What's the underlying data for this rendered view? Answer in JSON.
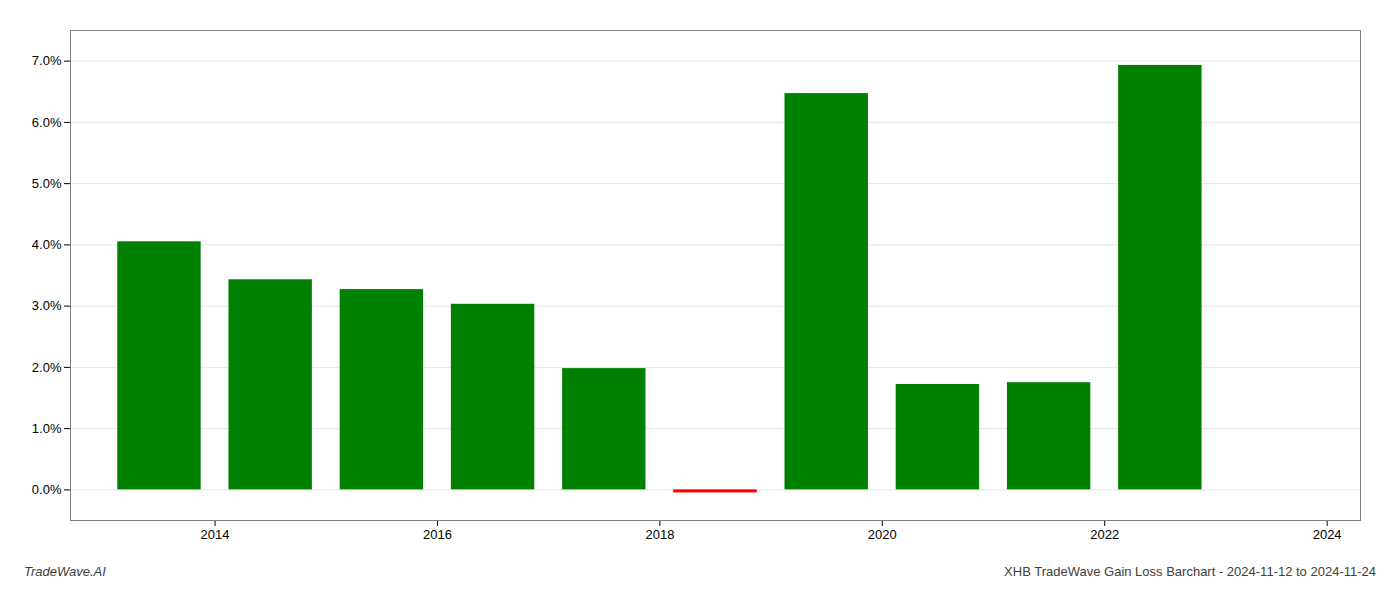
{
  "chart_data": {
    "type": "bar",
    "x": [
      2013,
      2014,
      2015,
      2016,
      2017,
      2018,
      2019,
      2020,
      2021,
      2022,
      2023
    ],
    "values": [
      0.0405,
      0.0343,
      0.0327,
      0.0303,
      0.0198,
      -0.0005,
      0.0647,
      0.0172,
      0.0175,
      0.0693,
      0.0
    ],
    "colors": [
      "#008000",
      "#008000",
      "#008000",
      "#008000",
      "#008000",
      "#ff0000",
      "#008000",
      "#008000",
      "#008000",
      "#008000",
      "#008000"
    ],
    "xlim": [
      2012.2,
      2023.8
    ],
    "xticks": [
      {
        "value": 2013.5,
        "label": "2014"
      },
      {
        "value": 2015.5,
        "label": "2016"
      },
      {
        "value": 2017.5,
        "label": "2018"
      },
      {
        "value": 2019.5,
        "label": "2020"
      },
      {
        "value": 2021.5,
        "label": "2022"
      },
      {
        "value": 2023.5,
        "label": "2024"
      }
    ],
    "ylim": [
      -0.005,
      0.075
    ],
    "yticks": [
      {
        "value": 0.0,
        "label": "0.0%"
      },
      {
        "value": 0.01,
        "label": "1.0%"
      },
      {
        "value": 0.02,
        "label": "2.0%"
      },
      {
        "value": 0.03,
        "label": "3.0%"
      },
      {
        "value": 0.04,
        "label": "4.0%"
      },
      {
        "value": 0.05,
        "label": "5.0%"
      },
      {
        "value": 0.06,
        "label": "6.0%"
      },
      {
        "value": 0.07,
        "label": "7.0%"
      }
    ],
    "grid": true,
    "annotations": [
      "TradeWave.AI",
      "XHB TradeWave Gain Loss Barchart - 2024-11-12 to 2024-11-24"
    ]
  }
}
